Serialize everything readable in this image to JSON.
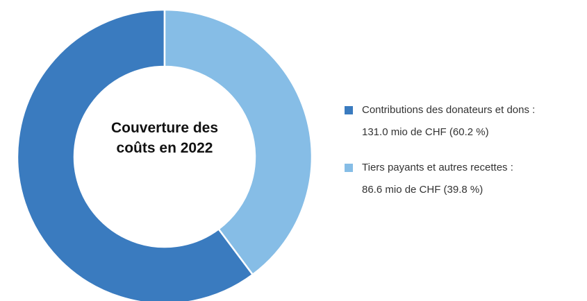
{
  "chart_data": {
    "type": "donut",
    "title": "Couverture des coûts en 2022",
    "categories": [
      "Contributions des donateurs et dons :",
      "Tiers payants et autres recettes :"
    ],
    "values": [
      131.0,
      86.6
    ],
    "value_labels": [
      "131.0 mio de CHF (60.2 %)",
      "86.6 mio de CHF (39.8 %)"
    ],
    "colors": [
      "#3a7bbf",
      "#86bde6"
    ]
  }
}
